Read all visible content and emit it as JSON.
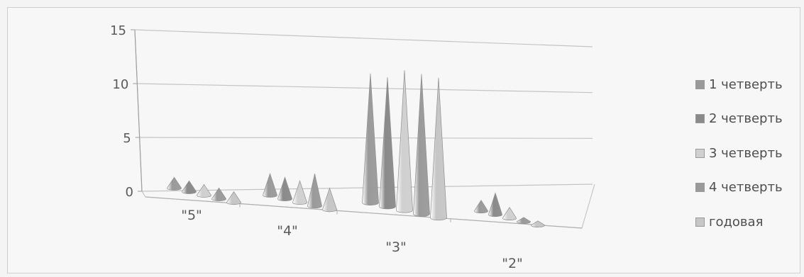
{
  "chart_data": {
    "type": "bar",
    "subtype": "3d-cone",
    "categories": [
      "\"5\"",
      "\"4\"",
      "\"3\"",
      "\"2\""
    ],
    "series": [
      {
        "name": "1 четверть",
        "values": [
          1,
          2,
          12,
          1
        ],
        "color": "#9a9a9a"
      },
      {
        "name": "2 четверть",
        "values": [
          1,
          2,
          12,
          2
        ],
        "color": "#8a8a8a"
      },
      {
        "name": "3 четверть",
        "values": [
          1,
          2,
          13,
          1
        ],
        "color": "#d0d0d0"
      },
      {
        "name": "4 четверть",
        "values": [
          1,
          3,
          13,
          0
        ],
        "color": "#9a9a9a"
      },
      {
        "name": "годовая",
        "values": [
          1,
          2,
          13,
          0
        ],
        "color": "#c6c6c6"
      }
    ],
    "y_ticks": [
      "0",
      "5",
      "10",
      "15"
    ],
    "ylim": [
      0,
      15
    ],
    "grid": true,
    "legend_position": "right"
  }
}
